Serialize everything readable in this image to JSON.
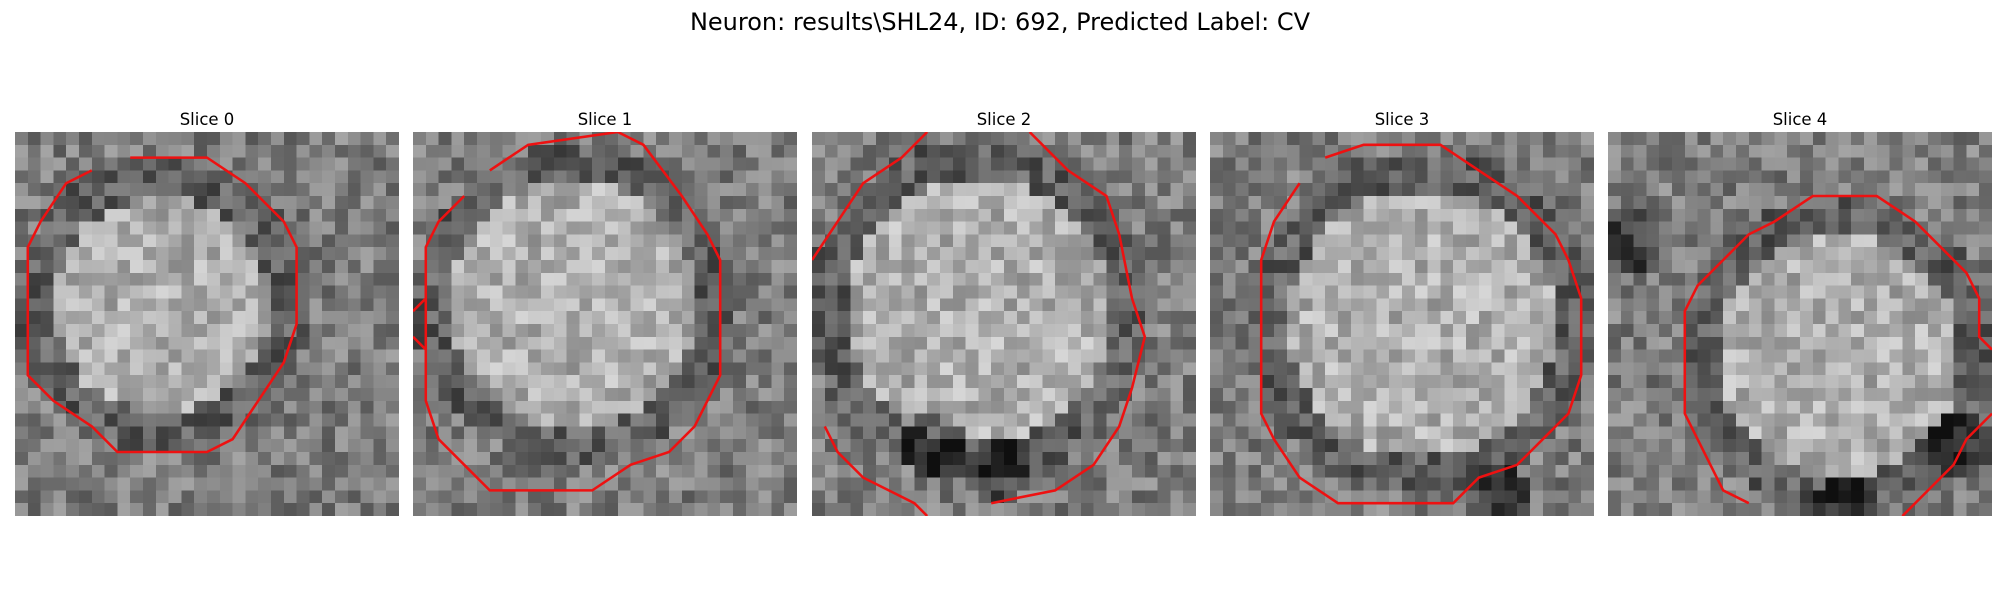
{
  "figure": {
    "title": "Neuron: results\\SHL24, ID: 692, Predicted Label: CV"
  },
  "colors": {
    "contour": "#ee1111"
  },
  "slices": [
    {
      "label": "Slice 0"
    },
    {
      "label": "Slice 1"
    },
    {
      "label": "Slice 2"
    },
    {
      "label": "Slice 3"
    },
    {
      "label": "Slice 4"
    }
  ]
}
